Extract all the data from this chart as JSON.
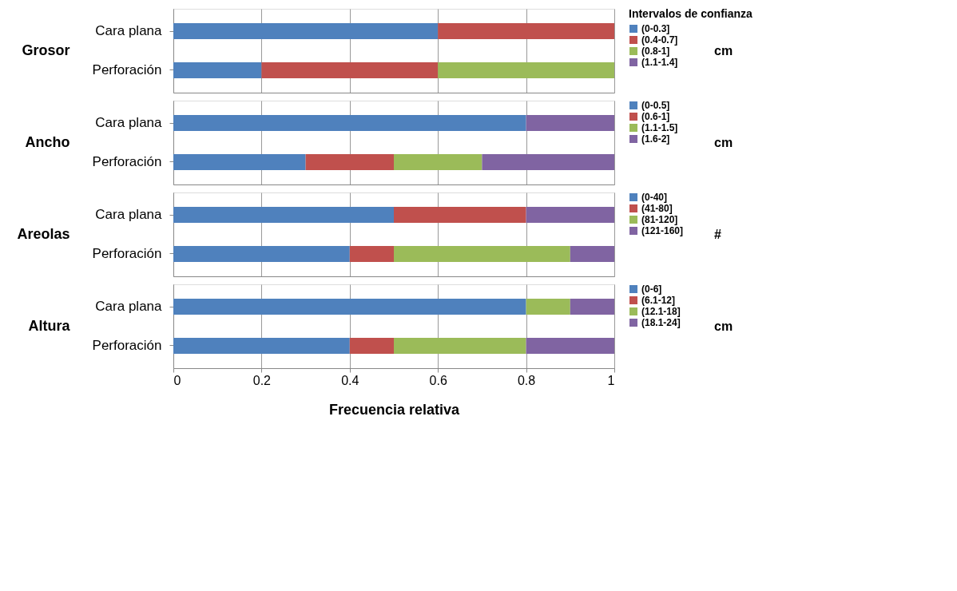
{
  "chart_data": [
    {
      "type": "bar",
      "orientation": "horizontal",
      "stacked": true,
      "ylabel": "Grosor",
      "categories": [
        "Cara plana",
        "Perforación"
      ],
      "legend_title": "Intervalos de confianza",
      "annotations": [
        "cm"
      ],
      "xlim": [
        0,
        1
      ],
      "xticks": [
        0,
        0.2,
        0.4,
        0.6,
        0.8,
        1
      ],
      "grid": "x",
      "legend": "right",
      "tick_labels": "y",
      "series": [
        {
          "name": "(0-0.3]",
          "color": "#4f81bd",
          "values": [
            0.6,
            0.2
          ]
        },
        {
          "name": "(0.4-0.7]",
          "color": "#c0504d",
          "values": [
            0.4,
            0.4
          ]
        },
        {
          "name": "(0.8-1]",
          "color": "#9bbb59",
          "values": [
            0,
            0.4
          ]
        },
        {
          "name": "(1.1-1.4]",
          "color": "#8064a2",
          "values": [
            0,
            0
          ]
        }
      ]
    },
    {
      "type": "bar",
      "orientation": "horizontal",
      "stacked": true,
      "ylabel": "Ancho",
      "categories": [
        "Cara plana",
        "Perforación"
      ],
      "annotations": [
        "cm"
      ],
      "xlim": [
        0,
        1
      ],
      "xticks": [
        0,
        0.2,
        0.4,
        0.6,
        0.8,
        1
      ],
      "grid": "x",
      "legend": "right",
      "tick_labels": "y",
      "series": [
        {
          "name": "(0-0.5]",
          "color": "#4f81bd",
          "values": [
            0.8,
            0.3
          ]
        },
        {
          "name": "(0.6-1]",
          "color": "#c0504d",
          "values": [
            0,
            0.2
          ]
        },
        {
          "name": "(1.1-1.5]",
          "color": "#9bbb59",
          "values": [
            0,
            0.2
          ]
        },
        {
          "name": "(1.6-2]",
          "color": "#8064a2",
          "values": [
            0.2,
            0.3
          ]
        }
      ]
    },
    {
      "type": "bar",
      "orientation": "horizontal",
      "stacked": true,
      "ylabel": "Areolas",
      "categories": [
        "Cara plana",
        "Perforación"
      ],
      "annotations": [
        "#"
      ],
      "xlim": [
        0,
        1
      ],
      "xticks": [
        0,
        0.2,
        0.4,
        0.6,
        0.8,
        1
      ],
      "grid": "x",
      "legend": "right",
      "tick_labels": "y",
      "series": [
        {
          "name": "(0-40]",
          "color": "#4f81bd",
          "values": [
            0.5,
            0.4
          ]
        },
        {
          "name": "(41-80]",
          "color": "#c0504d",
          "values": [
            0.3,
            0.1
          ]
        },
        {
          "name": "(81-120]",
          "color": "#9bbb59",
          "values": [
            0,
            0.4
          ]
        },
        {
          "name": "(121-160]",
          "color": "#8064a2",
          "values": [
            0.2,
            0.1
          ]
        }
      ]
    },
    {
      "type": "bar",
      "orientation": "horizontal",
      "stacked": true,
      "ylabel": "Altura",
      "categories": [
        "Cara plana",
        "Perforación"
      ],
      "annotations": [
        "cm"
      ],
      "xlabel": "Frecuencia relativa",
      "xlim": [
        0,
        1
      ],
      "xticks": [
        0,
        0.2,
        0.4,
        0.6,
        0.8,
        1
      ],
      "grid": "x",
      "legend": "right",
      "series": [
        {
          "name": "(0-6]",
          "color": "#4f81bd",
          "values": [
            0.8,
            0.4
          ]
        },
        {
          "name": "(6.1-12]",
          "color": "#c0504d",
          "values": [
            0,
            0.1
          ]
        },
        {
          "name": "(12.1-18]",
          "color": "#9bbb59",
          "values": [
            0.1,
            0.3
          ]
        },
        {
          "name": "(18.1-24]",
          "color": "#8064a2",
          "values": [
            0.1,
            0.2
          ]
        }
      ]
    }
  ]
}
